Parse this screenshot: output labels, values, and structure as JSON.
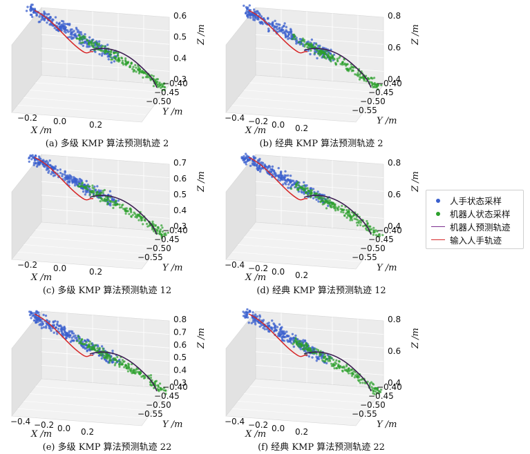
{
  "legend": [
    {
      "label": "人手状态采样",
      "kind": "dot",
      "color": "#3a5fcd"
    },
    {
      "label": "机器人状态采样",
      "kind": "dot",
      "color": "#2ca02c"
    },
    {
      "label": "机器人预测轨迹",
      "kind": "line",
      "color": "#7b2d8e"
    },
    {
      "label": "输入人手轨迹",
      "kind": "line",
      "color": "#d62728"
    }
  ],
  "chart_data": [
    {
      "type": "scatter3d",
      "caption": "(a) 多级 KMP 算法预测轨迹 2",
      "x_ticks": [
        "−0.2",
        "0.0",
        "0.2"
      ],
      "y_ticks": [
        "−0.40",
        "−0.45",
        "−0.50"
      ],
      "z_ticks": [
        "0.6",
        "0.5",
        "0.4",
        "0.3"
      ],
      "xlabel": "X /m",
      "ylabel": "Y /m",
      "zlabel": "Z /m",
      "zlim": [
        0.25,
        0.65
      ],
      "series": [
        {
          "name": "人手状态采样"
        },
        {
          "name": "机器人状态采样"
        },
        {
          "name": "机器人预测轨迹"
        },
        {
          "name": "输入人手轨迹"
        }
      ]
    },
    {
      "type": "scatter3d",
      "caption": "(b) 经典 KMP 算法预测轨迹 2",
      "x_ticks": [
        "−0.4",
        "−0.2",
        "0.0",
        "0.2"
      ],
      "y_ticks": [
        "−0.40",
        "−0.45",
        "−0.50",
        "−0.55"
      ],
      "z_ticks": [
        "0.8",
        "0.6",
        "0.4"
      ],
      "xlabel": "X /m",
      "ylabel": "Y /m",
      "zlabel": "Z /m",
      "zlim": [
        0.3,
        0.85
      ],
      "series": [
        {
          "name": "人手状态采样"
        },
        {
          "name": "机器人状态采样"
        },
        {
          "name": "机器人预测轨迹"
        },
        {
          "name": "输入人手轨迹"
        }
      ]
    },
    {
      "type": "scatter3d",
      "caption": "(c) 多级 KMP 算法预测轨迹 12",
      "x_ticks": [
        "−0.2",
        "0.0",
        "0.2"
      ],
      "y_ticks": [
        "−0.40",
        "−0.45",
        "−0.50",
        "−0.55"
      ],
      "z_ticks": [
        "0.7",
        "0.6",
        "0.5",
        "0.4",
        "0.3"
      ],
      "xlabel": "X /m",
      "ylabel": "Y /m",
      "zlabel": "Z /m",
      "zlim": [
        0.25,
        0.75
      ],
      "series": [
        {
          "name": "人手状态采样"
        },
        {
          "name": "机器人状态采样"
        },
        {
          "name": "机器人预测轨迹"
        },
        {
          "name": "输入人手轨迹"
        }
      ]
    },
    {
      "type": "scatter3d",
      "caption": "(d) 经典 KMP 算法预测轨迹 12",
      "x_ticks": [
        "−0.4",
        "−0.2",
        "0.0",
        "0.2"
      ],
      "y_ticks": [
        "−0.40",
        "−0.45",
        "−0.50",
        "−0.55"
      ],
      "z_ticks": [
        "0.8",
        "0.6",
        "0.4"
      ],
      "xlabel": "X /m",
      "ylabel": "Y /m",
      "zlabel": "Z /m",
      "zlim": [
        0.3,
        0.85
      ],
      "series": [
        {
          "name": "人手状态采样"
        },
        {
          "name": "机器人状态采样"
        },
        {
          "name": "机器人预测轨迹"
        },
        {
          "name": "输入人手轨迹"
        }
      ]
    },
    {
      "type": "scatter3d",
      "caption": "(e) 多级 KMP 算法预测轨迹 22",
      "x_ticks": [
        "−0.4",
        "−0.2",
        "0.0",
        "0.2"
      ],
      "y_ticks": [
        "−0.40",
        "−0.45",
        "−0.50",
        "−0.55"
      ],
      "z_ticks": [
        "0.8",
        "0.7",
        "0.6",
        "0.5",
        "0.4",
        "0.3"
      ],
      "xlabel": "X /m",
      "ylabel": "Y /m",
      "zlabel": "Z /m",
      "zlim": [
        0.25,
        0.85
      ],
      "series": [
        {
          "name": "人手状态采样"
        },
        {
          "name": "机器人状态采样"
        },
        {
          "name": "机器人预测轨迹"
        },
        {
          "name": "输入人手轨迹"
        }
      ]
    },
    {
      "type": "scatter3d",
      "caption": "(f) 经典 KMP 算法预测轨迹 22",
      "x_ticks": [
        "−0.4",
        "−0.2",
        "0.0",
        "0.2"
      ],
      "y_ticks": [
        "−0.40",
        "−0.45",
        "−0.50",
        "−0.55"
      ],
      "z_ticks": [
        "0.8",
        "0.6",
        "0.4"
      ],
      "xlabel": "X /m",
      "ylabel": "Y /m",
      "zlabel": "Z /m",
      "zlim": [
        0.3,
        0.85
      ],
      "series": [
        {
          "name": "人手状态采样"
        },
        {
          "name": "机器人状态采样"
        },
        {
          "name": "机器人预测轨迹"
        },
        {
          "name": "输入人手轨迹"
        }
      ]
    }
  ]
}
